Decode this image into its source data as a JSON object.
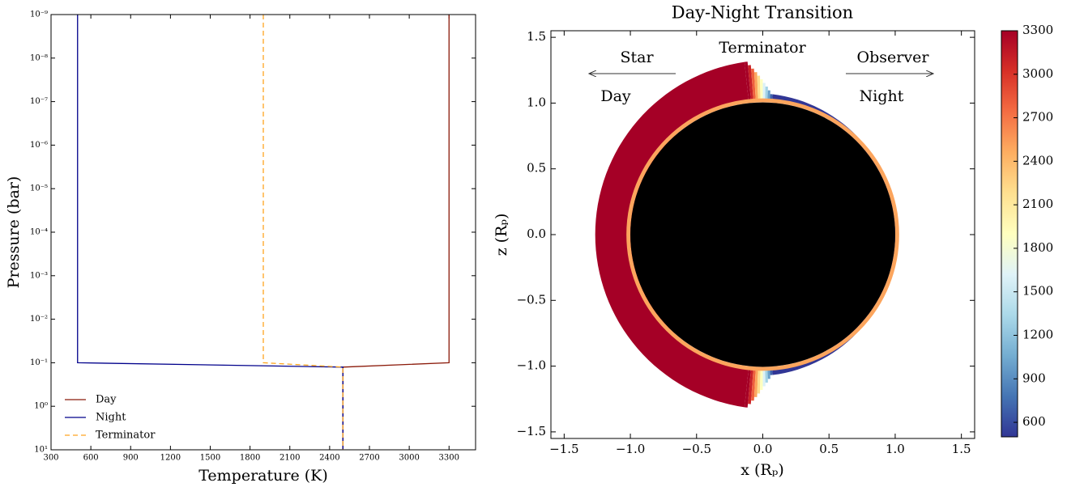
{
  "chart_data": [
    {
      "type": "line",
      "xlabel": "Temperature (K)",
      "ylabel": "Pressure (bar)",
      "xlim": [
        300,
        3500
      ],
      "xticks": [
        300,
        600,
        900,
        1200,
        1500,
        1800,
        2100,
        2400,
        2700,
        3000,
        3300
      ],
      "ylim": [
        1e-09,
        10
      ],
      "log_y": true,
      "invert_y": true,
      "yticks": [
        {
          "value": 1e-09,
          "label": "10⁻⁹"
        },
        {
          "value": 1e-08,
          "label": "10⁻⁸"
        },
        {
          "value": 1e-07,
          "label": "10⁻⁷"
        },
        {
          "value": 1e-06,
          "label": "10⁻⁶"
        },
        {
          "value": 1e-05,
          "label": "10⁻⁵"
        },
        {
          "value": 0.0001,
          "label": "10⁻⁴"
        },
        {
          "value": 0.001,
          "label": "10⁻³"
        },
        {
          "value": 0.01,
          "label": "10⁻²"
        },
        {
          "value": 0.1,
          "label": "10⁻¹"
        },
        {
          "value": 1,
          "label": "10⁰"
        },
        {
          "value": 10,
          "label": "10¹"
        }
      ],
      "legend": "lower left",
      "series": [
        {
          "name": "Day",
          "color": "#8b1a0a",
          "dash": false,
          "x": [
            3300,
            3300,
            2500,
            2500
          ],
          "values": [
            1e-09,
            0.1,
            0.126,
            10
          ]
        },
        {
          "name": "Night",
          "color": "#00008b",
          "dash": false,
          "x": [
            500,
            500,
            2500,
            2500
          ],
          "values": [
            1e-09,
            0.1,
            0.126,
            10
          ]
        },
        {
          "name": "Terminator",
          "color": "#ffa520",
          "dash": true,
          "x": [
            1900,
            1900,
            2500,
            2500
          ],
          "values": [
            1e-09,
            0.1,
            0.126,
            10
          ]
        }
      ]
    },
    {
      "type": "polar-heatmap",
      "title": "Day-Night Transition",
      "xlabel": "x (Rₚ)",
      "ylabel": "z (Rₚ)",
      "annotations": [
        "Star",
        "Day",
        "Terminator",
        "Observer",
        "Night"
      ],
      "xlim": [
        -1.6,
        1.6
      ],
      "ylim": [
        -1.55,
        1.55
      ],
      "xticks": [
        {
          "value": -1.5,
          "label": "−1.5"
        },
        {
          "value": -1,
          "label": "−1.0"
        },
        {
          "value": -0.5,
          "label": "−0.5"
        },
        {
          "value": 0,
          "label": "0.0"
        },
        {
          "value": 0.5,
          "label": "0.5"
        },
        {
          "value": 1,
          "label": "1.0"
        },
        {
          "value": 1.5,
          "label": "1.5"
        }
      ],
      "yticks": [
        {
          "value": -1.5,
          "label": "−1.5"
        },
        {
          "value": -1,
          "label": "−1.0"
        },
        {
          "value": -0.5,
          "label": "−0.5"
        },
        {
          "value": 0,
          "label": "0.0"
        },
        {
          "value": 0.5,
          "label": "0.5"
        },
        {
          "value": 1,
          "label": "1.0"
        },
        {
          "value": 1.5,
          "label": "1.5"
        }
      ],
      "r_planet": 1.0,
      "r_top_day": 1.32,
      "r_top_night": 1.07,
      "temperature_day": 3300,
      "temperature_night": 500,
      "temperature_deep": 2500,
      "transition": [
        3300,
        3100,
        2800,
        2500,
        2200,
        1900,
        1600,
        1300,
        1000,
        700
      ],
      "colormap": "RdYlBu_r",
      "clim": [
        500,
        3300
      ],
      "cticks": [
        600,
        900,
        1200,
        1500,
        1800,
        2100,
        2400,
        2700,
        3000,
        3300
      ]
    }
  ]
}
